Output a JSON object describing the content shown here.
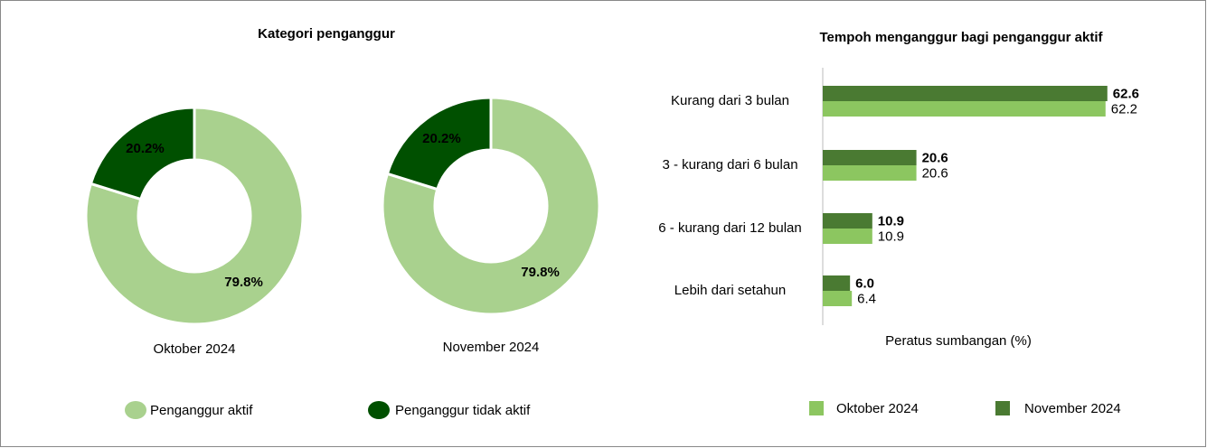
{
  "chart_data": [
    {
      "type": "donut",
      "title": "Kategori penganggur",
      "categories": [
        "Penganggur aktif",
        "Penganggur tidak aktif"
      ],
      "colors": [
        "#a9d18e",
        "#005000"
      ],
      "pies": [
        {
          "label": "Oktober 2024",
          "values": [
            79.8,
            20.2
          ],
          "value_labels": [
            "79.8%",
            "20.2%"
          ]
        },
        {
          "label": "November 2024",
          "values": [
            79.8,
            20.2
          ],
          "value_labels": [
            "79.8%",
            "20.2%"
          ]
        }
      ]
    },
    {
      "type": "hbar",
      "title": "Tempoh menganggur bagi penganggur aktif",
      "categories": [
        "Kurang dari 3 bulan",
        "3 - kurang dari 6 bulan",
        "6 - kurang dari 12 bulan",
        "Lebih dari setahun"
      ],
      "series": [
        {
          "name": "Oktober 2024",
          "color": "#8cc660",
          "values": [
            62.2,
            20.6,
            10.9,
            6.4
          ]
        },
        {
          "name": "November 2024",
          "color": "#4a7a32",
          "values": [
            62.6,
            20.6,
            10.9,
            6.0
          ],
          "value_labels": [
            "62.6",
            "20.6",
            "10.9",
            "6.0"
          ]
        }
      ],
      "xlabel": "Peratus sumbangan (%)",
      "xlim": [
        0,
        70
      ]
    }
  ]
}
